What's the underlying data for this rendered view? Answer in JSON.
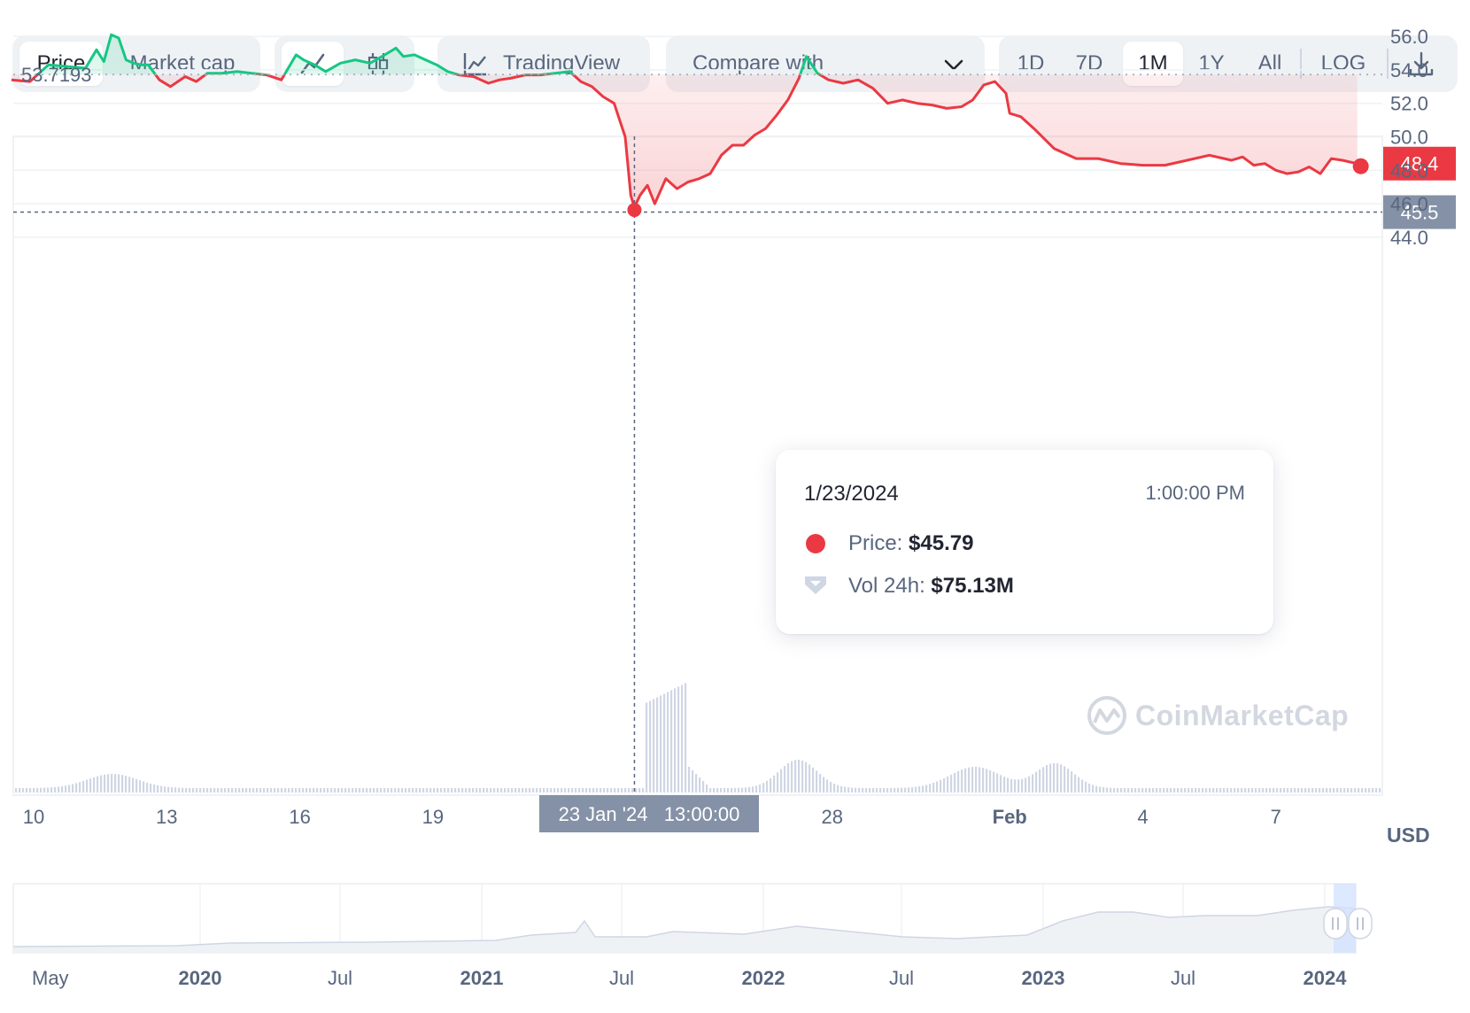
{
  "toolbar": {
    "view_tabs": [
      {
        "label": "Price",
        "active": true
      },
      {
        "label": "Market cap",
        "active": false
      }
    ],
    "chart_types": [
      {
        "icon": "line-chart-icon",
        "active": true
      },
      {
        "icon": "candlestick-icon",
        "active": false
      }
    ],
    "tradingview_label": "TradingView",
    "compare_label": "Compare with",
    "ranges": [
      {
        "label": "1D",
        "active": false
      },
      {
        "label": "7D",
        "active": false
      },
      {
        "label": "1M",
        "active": true
      },
      {
        "label": "1Y",
        "active": false
      },
      {
        "label": "All",
        "active": false
      }
    ],
    "log_label": "LOG",
    "download_icon": "download-icon"
  },
  "tooltip": {
    "date": "1/23/2024",
    "time": "1:00:00 PM",
    "price_label": "Price:",
    "price_value": "$45.79",
    "vol_label": "Vol 24h:",
    "vol_value": "$75.13M"
  },
  "crosshair": {
    "x_label": "23 Jan '24   13:00:00",
    "y_value": "45.5"
  },
  "reference_label": "53.7193",
  "current_price_label": "48.4",
  "currency": "USD",
  "watermark": "CoinMarketCap",
  "colors": {
    "up": "#16c784",
    "down": "#ea3943",
    "text": "#58667e",
    "dark_text": "#222531",
    "grid": "#eff2f5"
  },
  "chart_data": {
    "type": "line",
    "xlabel": "",
    "ylabel": "",
    "ylim": [
      42.5,
      57.8
    ],
    "yticks": [
      "56.0",
      "54.0",
      "52.0",
      "50.0",
      "48.0",
      "46.0",
      "44.0"
    ],
    "xticks": [
      "10",
      "13",
      "16",
      "19",
      "28",
      "Feb",
      "4",
      "7"
    ],
    "reference_value": 53.7193,
    "current_value": 48.4,
    "crosshair_value": 45.5,
    "series": [
      {
        "x": [
          "2024-01-09 12:00",
          "2024-01-09 22:00",
          "2024-01-10 08:00",
          "2024-01-10 18:00",
          "2024-01-11 04:00",
          "2024-01-11 10:00",
          "2024-01-11 14:00",
          "2024-01-11 18:00",
          "2024-01-11 22:00",
          "2024-01-12 02:00",
          "2024-01-12 06:00",
          "2024-01-12 10:00",
          "2024-01-12 14:00",
          "2024-01-12 20:00",
          "2024-01-13 02:00",
          "2024-01-13 06:00",
          "2024-01-13 10:00",
          "2024-01-13 16:00",
          "2024-01-13 22:00",
          "2024-01-14 06:00",
          "2024-01-14 14:00",
          "2024-01-14 22:00",
          "2024-01-15 06:00",
          "2024-01-15 14:00",
          "2024-01-15 22:00",
          "2024-01-16 02:00",
          "2024-01-16 08:00",
          "2024-01-16 14:00",
          "2024-01-16 22:00",
          "2024-01-17 06:00",
          "2024-01-17 14:00",
          "2024-01-17 22:00",
          "2024-01-18 04:00",
          "2024-01-18 08:00",
          "2024-01-18 14:00",
          "2024-01-18 20:00",
          "2024-01-19 02:00",
          "2024-01-19 08:00",
          "2024-01-19 14:00",
          "2024-01-19 22:00",
          "2024-01-20 06:00",
          "2024-01-20 12:00",
          "2024-01-20 18:00",
          "2024-01-21 02:00",
          "2024-01-21 10:00",
          "2024-01-21 18:00",
          "2024-01-22 02:00",
          "2024-01-22 08:00",
          "2024-01-22 14:00",
          "2024-01-22 20:00",
          "2024-01-23 02:00",
          "2024-01-23 08:00",
          "2024-01-23 11:00",
          "2024-01-23 13:00",
          "2024-01-23 16:00",
          "2024-01-23 20:00",
          "2024-01-24 00:00",
          "2024-01-24 06:00",
          "2024-01-24 12:00",
          "2024-01-24 18:00",
          "2024-01-25 00:00",
          "2024-01-25 06:00",
          "2024-01-25 12:00",
          "2024-01-25 18:00",
          "2024-01-26 00:00",
          "2024-01-26 06:00",
          "2024-01-26 12:00",
          "2024-01-26 18:00",
          "2024-01-27 00:00",
          "2024-01-27 06:00",
          "2024-01-27 10:00",
          "2024-01-27 16:00",
          "2024-01-27 22:00",
          "2024-01-28 06:00",
          "2024-01-28 14:00",
          "2024-01-28 22:00",
          "2024-01-29 06:00",
          "2024-01-29 14:00",
          "2024-01-29 22:00",
          "2024-01-30 06:00",
          "2024-01-30 14:00",
          "2024-01-30 22:00",
          "2024-01-31 04:00",
          "2024-01-31 10:00",
          "2024-01-31 16:00",
          "2024-01-31 22:00",
          "2024-02-01 00:00",
          "2024-02-01 06:00",
          "2024-02-01 14:00",
          "2024-02-02 00:00",
          "2024-02-02 12:00",
          "2024-02-03 00:00",
          "2024-02-03 12:00",
          "2024-02-04 00:00",
          "2024-02-04 12:00",
          "2024-02-05 00:00",
          "2024-02-05 12:00",
          "2024-02-06 00:00",
          "2024-02-06 06:00",
          "2024-02-06 12:00",
          "2024-02-06 18:00",
          "2024-02-07 00:00",
          "2024-02-07 06:00",
          "2024-02-07 12:00",
          "2024-02-07 18:00",
          "2024-02-08 00:00",
          "2024-02-08 06:00",
          "2024-02-08 12:00",
          "2024-02-08 16:00",
          "2024-02-08 20:00"
        ],
        "y": [
          53.4,
          53.3,
          54.3,
          54.2,
          54.1,
          55.2,
          54.5,
          56.1,
          55.9,
          54.6,
          54.4,
          54.3,
          54.3,
          53.4,
          53.0,
          53.3,
          53.6,
          53.3,
          53.8,
          53.8,
          53.9,
          53.8,
          53.7,
          53.4,
          54.9,
          54.6,
          54.3,
          53.9,
          54.4,
          54.6,
          54.4,
          54.9,
          55.3,
          54.8,
          54.9,
          54.6,
          54.3,
          53.9,
          53.7,
          53.6,
          53.2,
          53.4,
          53.5,
          53.7,
          53.7,
          53.8,
          53.9,
          53.3,
          53.0,
          52.4,
          52.0,
          50.0,
          46.5,
          45.79,
          46.5,
          47.1,
          46.0,
          47.5,
          46.9,
          47.3,
          47.5,
          47.8,
          48.9,
          49.5,
          49.5,
          50.1,
          50.5,
          51.3,
          52.2,
          53.5,
          54.8,
          53.8,
          53.4,
          53.2,
          53.4,
          52.9,
          52.0,
          52.2,
          52.0,
          51.9,
          51.7,
          51.8,
          52.2,
          53.1,
          53.3,
          52.6,
          51.4,
          51.2,
          50.4,
          49.3,
          48.7,
          48.7,
          48.4,
          48.3,
          48.3,
          48.6,
          48.9,
          48.6,
          48.8,
          48.3,
          48.4,
          48.0,
          47.8,
          47.9,
          48.2,
          47.8,
          48.7,
          48.6,
          48.5,
          48.4
        ]
      }
    ],
    "navigator": {
      "labels": [
        "May",
        "2020",
        "Jul",
        "2021",
        "Jul",
        "2022",
        "Jul",
        "2023",
        "Jul",
        "2024"
      ],
      "bold": [
        false,
        true,
        false,
        true,
        false,
        true,
        false,
        true,
        false,
        true
      ]
    }
  }
}
